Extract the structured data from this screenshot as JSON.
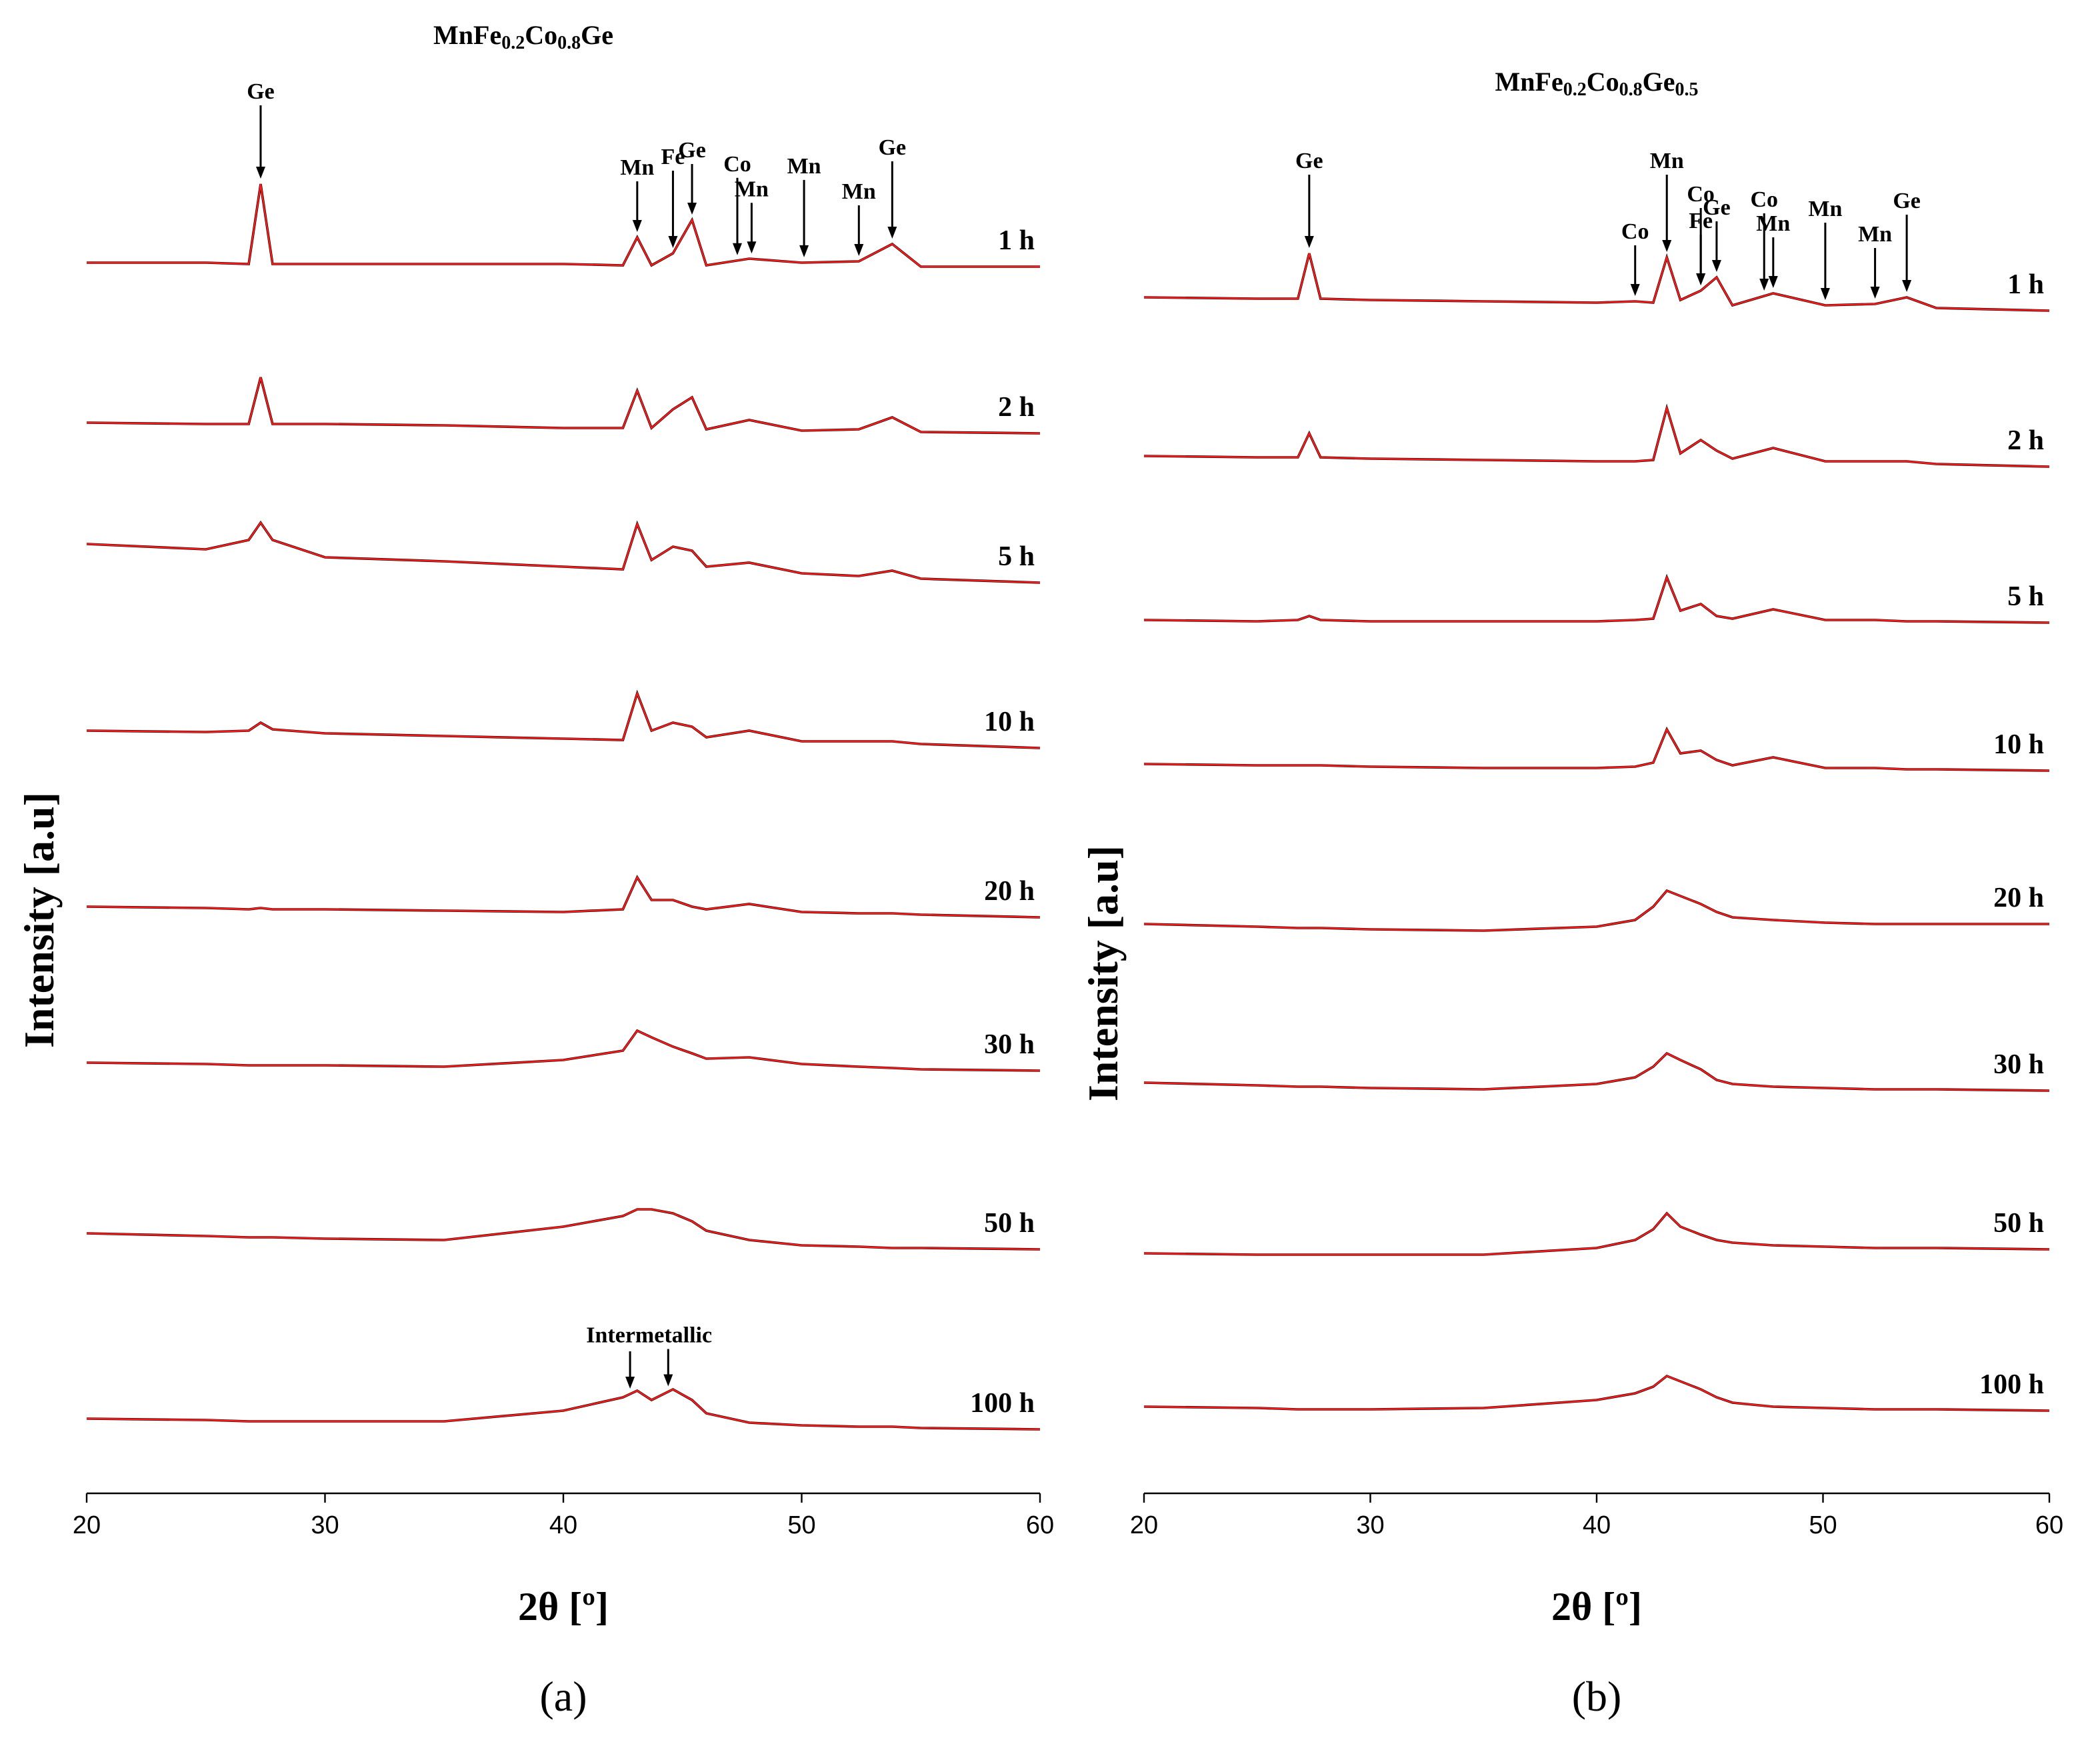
{
  "chart_data": [
    {
      "type": "line",
      "title": "MnFe0.2Co0.8Ge",
      "panel_label": "(a)",
      "xlabel": "2θ [º]",
      "ylabel": "Intensity [a.u]",
      "xlim": [
        20,
        60
      ],
      "xticks": [
        20,
        30,
        40,
        50,
        60
      ],
      "ylim": [
        0,
        1090
      ],
      "data_color": "#000000",
      "fit_color": "#ff1a1a",
      "x": [
        20,
        25,
        26.8,
        27.3,
        27.8,
        30,
        35,
        40,
        42.5,
        43.1,
        43.7,
        44.6,
        45.4,
        46,
        47.8,
        50,
        52.4,
        53.8,
        55,
        60
      ],
      "series": [
        {
          "name": "1 h",
          "values": [
            923,
            923,
            922,
            982,
            922,
            922,
            922,
            922,
            921,
            942,
            921,
            930,
            955,
            921,
            926,
            923,
            924,
            937,
            920,
            920
          ],
          "annotations": [
            {
              "text": "Ge",
              "x": [
                27.3
              ]
            },
            {
              "text": "Mn",
              "x": [
                43.1
              ]
            },
            {
              "text": "Fe",
              "x": [
                44.6
              ]
            },
            {
              "text": "Ge",
              "x": [
                45.4
              ]
            },
            {
              "text": "Co",
              "x": [
                47.3
              ]
            },
            {
              "text": "Mn",
              "x": [
                47.9
              ]
            },
            {
              "text": "Mn",
              "x": [
                50.1
              ]
            },
            {
              "text": "Mn",
              "x": [
                52.4
              ]
            },
            {
              "text": "Ge",
              "x": [
                53.8
              ]
            }
          ]
        },
        {
          "name": "2 h",
          "values": [
            803,
            802,
            802,
            837,
            802,
            802,
            801,
            799,
            799,
            827,
            799,
            813,
            822,
            798,
            805,
            797,
            798,
            807,
            796,
            795
          ]
        },
        {
          "name": "5 h",
          "values": [
            712,
            708,
            715,
            728,
            715,
            702,
            699,
            695,
            693,
            727,
            700,
            710,
            707,
            695,
            698,
            690,
            688,
            692,
            686,
            683
          ]
        },
        {
          "name": "10 h",
          "values": [
            572,
            571,
            572,
            578,
            573,
            570,
            568,
            566,
            565,
            600,
            572,
            578,
            575,
            567,
            572,
            564,
            564,
            564,
            562,
            559
          ]
        },
        {
          "name": "20 h",
          "values": [
            440,
            439,
            438,
            439,
            438,
            438,
            437,
            436,
            438,
            462,
            445,
            445,
            440,
            438,
            442,
            436,
            435,
            435,
            434,
            432
          ]
        },
        {
          "name": "30 h",
          "values": [
            323,
            322,
            321,
            321,
            321,
            321,
            320,
            325,
            332,
            347,
            342,
            335,
            330,
            326,
            327,
            322,
            320,
            319,
            318,
            317
          ]
        },
        {
          "name": "50 h",
          "values": [
            195,
            193,
            192,
            192,
            192,
            191,
            190,
            200,
            208,
            213,
            213,
            210,
            204,
            197,
            190,
            186,
            185,
            184,
            184,
            183
          ]
        },
        {
          "name": "100 h",
          "values": [
            56,
            55,
            54,
            54,
            54,
            54,
            54,
            62,
            72,
            77,
            70,
            78,
            70,
            60,
            53,
            51,
            50,
            50,
            49,
            48
          ],
          "annotations": [
            {
              "text": "Intermetallic",
              "x": [
                42.8,
                44.4
              ]
            }
          ]
        }
      ]
    },
    {
      "type": "line",
      "title": "MnFe0.2Co0.8Ge0.5",
      "panel_label": "(b)",
      "xlabel": "2θ [º]",
      "ylabel": "Intensity [a.u]",
      "xlim": [
        20,
        60
      ],
      "xticks": [
        20,
        30,
        40,
        50,
        60
      ],
      "ylim": [
        0,
        1090
      ],
      "data_color": "#000000",
      "fit_color": "#ff1a1a",
      "x": [
        20,
        25,
        26.8,
        27.3,
        27.8,
        30,
        35,
        40,
        41.7,
        42.5,
        43.1,
        43.7,
        44.6,
        45.3,
        46,
        47.8,
        50.1,
        52.3,
        53.7,
        55,
        60
      ],
      "series": [
        {
          "name": "1 h",
          "values": [
            897,
            896,
            896,
            930,
            896,
            895,
            894,
            893,
            894,
            893,
            927,
            895,
            902,
            912,
            891,
            900,
            891,
            892,
            897,
            889,
            887
          ],
          "annotations": [
            {
              "text": "Ge",
              "x": [
                27.3
              ]
            },
            {
              "text": "Co",
              "x": [
                41.7
              ]
            },
            {
              "text": "Mn",
              "x": [
                43.1
              ]
            },
            {
              "text": "Fe",
              "x": [
                44.6
              ]
            },
            {
              "text": "Co",
              "x": [
                44.6
              ]
            },
            {
              "text": "Ge",
              "x": [
                45.3
              ]
            },
            {
              "text": "Co",
              "x": [
                47.4
              ]
            },
            {
              "text": "Mn",
              "x": [
                47.8
              ]
            },
            {
              "text": "Mn",
              "x": [
                50.1
              ]
            },
            {
              "text": "Mn",
              "x": [
                52.3
              ]
            },
            {
              "text": "Ge",
              "x": [
                53.7
              ]
            }
          ]
        },
        {
          "name": "2 h",
          "values": [
            778,
            777,
            777,
            795,
            777,
            776,
            775,
            774,
            774,
            775,
            814,
            780,
            790,
            782,
            776,
            784,
            774,
            774,
            774,
            772,
            770
          ]
        },
        {
          "name": "5 h",
          "values": [
            655,
            654,
            655,
            658,
            655,
            654,
            654,
            654,
            655,
            656,
            687,
            662,
            667,
            658,
            656,
            663,
            655,
            655,
            654,
            654,
            653
          ]
        },
        {
          "name": "10 h",
          "values": [
            547,
            546,
            546,
            546,
            546,
            545,
            544,
            544,
            545,
            548,
            573,
            555,
            557,
            550,
            546,
            552,
            544,
            544,
            543,
            543,
            542
          ]
        },
        {
          "name": "20 h",
          "values": [
            427,
            425,
            424,
            424,
            424,
            423,
            422,
            425,
            430,
            440,
            452,
            448,
            442,
            436,
            432,
            430,
            428,
            427,
            427,
            427,
            427
          ]
        },
        {
          "name": "30 h",
          "values": [
            308,
            306,
            305,
            305,
            305,
            304,
            303,
            307,
            312,
            320,
            330,
            325,
            318,
            310,
            307,
            305,
            304,
            303,
            303,
            303,
            302
          ]
        },
        {
          "name": "50 h",
          "values": [
            180,
            179,
            179,
            179,
            179,
            179,
            179,
            184,
            190,
            198,
            210,
            200,
            194,
            190,
            188,
            186,
            185,
            184,
            184,
            184,
            183
          ]
        },
        {
          "name": "100 h",
          "values": [
            65,
            64,
            63,
            63,
            63,
            63,
            64,
            70,
            75,
            80,
            88,
            84,
            78,
            72,
            68,
            65,
            64,
            63,
            63,
            63,
            62
          ]
        }
      ]
    }
  ]
}
